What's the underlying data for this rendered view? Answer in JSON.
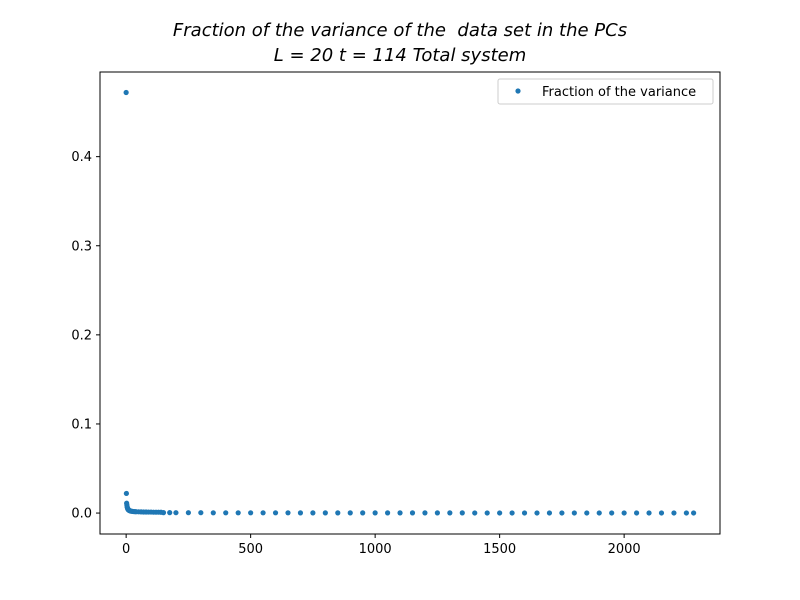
{
  "chart_data": {
    "type": "scatter",
    "title_lines": [
      "Fraction of the variance of the  data set in the PCs",
      "L = 20 t = 114 Total system"
    ],
    "xlabel": "",
    "ylabel": "",
    "xlim": [
      -105,
      2385
    ],
    "ylim": [
      -0.0235,
      0.495
    ],
    "x_ticks": [
      0,
      500,
      1000,
      1500,
      2000
    ],
    "x_tick_labels": [
      "0",
      "500",
      "1000",
      "1500",
      "2000"
    ],
    "y_ticks": [
      0.0,
      0.1,
      0.2,
      0.3,
      0.4
    ],
    "y_tick_labels": [
      "0.0",
      "0.1",
      "0.2",
      "0.3",
      "0.4"
    ],
    "grid": false,
    "legend_position": "top-right",
    "series": [
      {
        "name": "Fraction of the variance",
        "color": "#1f77b4",
        "marker": "point",
        "x": [
          0,
          1,
          2,
          3,
          4,
          5,
          6,
          7,
          8,
          9,
          10,
          12,
          14,
          16,
          18,
          20,
          25,
          30,
          35,
          40,
          50,
          60,
          70,
          80,
          90,
          100,
          110,
          120,
          130,
          140,
          150,
          175,
          200,
          250,
          300,
          350,
          400,
          450,
          500,
          550,
          600,
          650,
          700,
          750,
          800,
          850,
          900,
          950,
          1000,
          1050,
          1100,
          1150,
          1200,
          1250,
          1300,
          1350,
          1400,
          1450,
          1500,
          1550,
          1600,
          1650,
          1700,
          1750,
          1800,
          1850,
          1900,
          1950,
          2000,
          2050,
          2100,
          2150,
          2200,
          2250,
          2279
        ],
        "y": [
          0.472,
          0.022,
          0.011,
          0.009,
          0.007,
          0.006,
          0.005,
          0.0045,
          0.004,
          0.0037,
          0.0034,
          0.003,
          0.0027,
          0.0025,
          0.0023,
          0.0021,
          0.0019,
          0.0017,
          0.0016,
          0.0015,
          0.0014,
          0.0013,
          0.0012,
          0.0012,
          0.0011,
          0.0011,
          0.001,
          0.001,
          0.001,
          0.0009,
          0.0005,
          0.0005,
          0.0004,
          0.0004,
          0.0004,
          0.0003,
          0.0003,
          0.0003,
          0.0003,
          0.0003,
          0.0003,
          0.0003,
          0.0002,
          0.0002,
          0.0002,
          0.0002,
          0.0002,
          0.0002,
          0.0002,
          0.0002,
          0.0002,
          0.0002,
          0.0002,
          0.0002,
          0.0002,
          0.0002,
          0.0001,
          0.0001,
          0.0001,
          0.0001,
          0.0001,
          0.0001,
          0.0001,
          0.0001,
          0.0001,
          0.0001,
          0.0001,
          0.0001,
          0.0001,
          0.0001,
          0.0001,
          0.0001,
          0.0001,
          0.0001,
          0.0001
        ]
      }
    ]
  }
}
